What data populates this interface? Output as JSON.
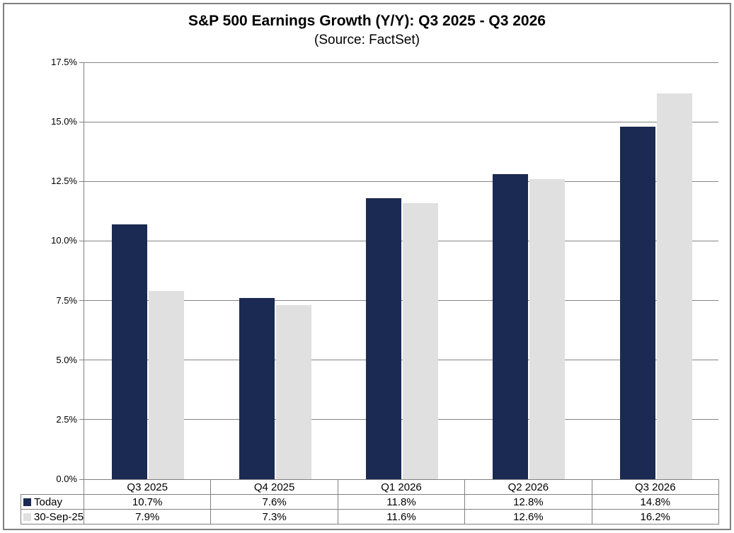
{
  "chart_data": {
    "type": "bar",
    "title": "S&P 500 Earnings Growth (Y/Y): Q3 2025 - Q3 2026",
    "subtitle": "(Source: FactSet)",
    "categories": [
      "Q3 2025",
      "Q4 2025",
      "Q1 2026",
      "Q2 2026",
      "Q3 2026"
    ],
    "series": [
      {
        "name": "Today",
        "values": [
          10.7,
          7.6,
          11.8,
          12.8,
          14.8
        ],
        "color": "#1B2A52"
      },
      {
        "name": "30-Sep-25",
        "values": [
          7.9,
          7.3,
          11.6,
          12.6,
          16.2
        ],
        "color": "#E0E0E0"
      }
    ],
    "table_values": [
      [
        "10.7%",
        "7.6%",
        "11.8%",
        "12.8%",
        "14.8%"
      ],
      [
        "7.9%",
        "7.3%",
        "11.6%",
        "12.6%",
        "16.2%"
      ]
    ],
    "xlabel": "",
    "ylabel": "",
    "ylim": [
      0,
      17.5
    ],
    "ytick_labels": [
      "0.0%",
      "2.5%",
      "5.0%",
      "7.5%",
      "10.0%",
      "12.5%",
      "15.0%",
      "17.5%"
    ],
    "grid": true,
    "legend_position": "data-table-left",
    "axis_color": "#808080",
    "grid_color": "#848484",
    "frame_color": "#7F7F7F"
  }
}
